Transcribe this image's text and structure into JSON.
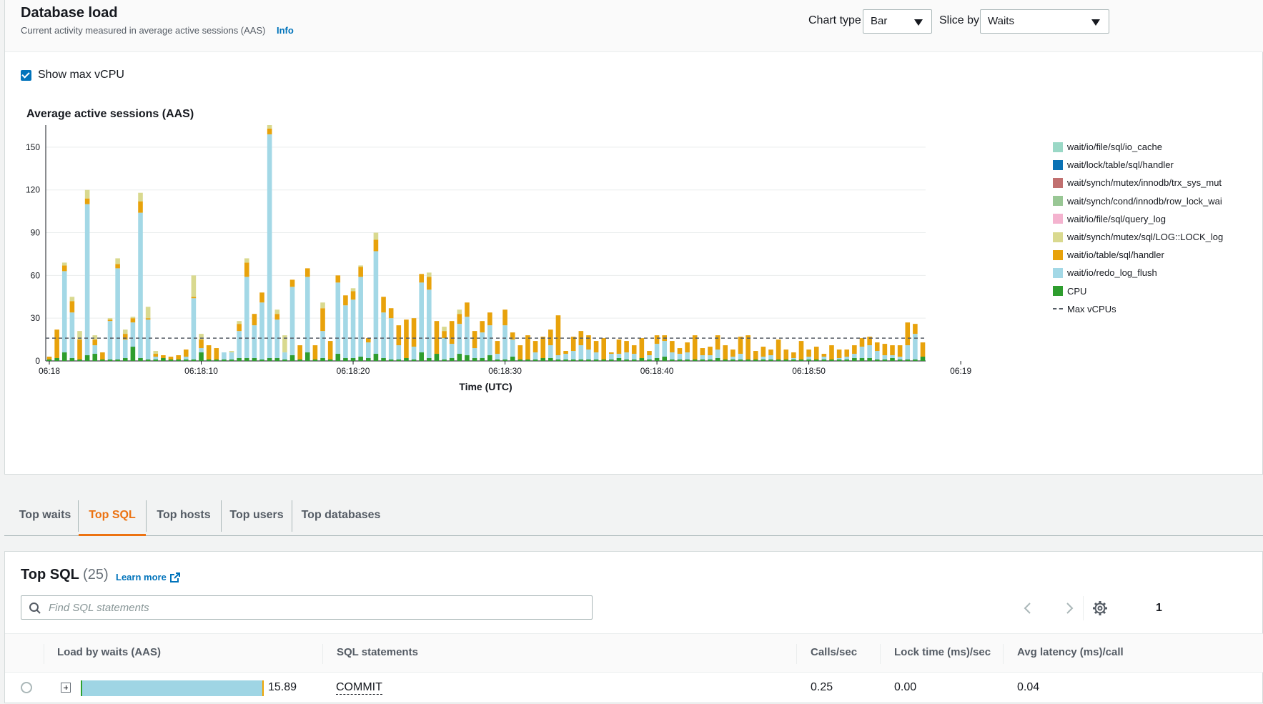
{
  "header": {
    "title": "Database load",
    "subtitle": "Current activity measured in average active sessions (AAS)",
    "info_link": "Info",
    "chart_type_label": "Chart type",
    "chart_type_value": "Bar",
    "slice_by_label": "Slice by",
    "slice_by_value": "Waits"
  },
  "show_max_vcpu": {
    "label": "Show max vCPU",
    "checked": true
  },
  "chart_data": {
    "type": "bar",
    "stacked": true,
    "title": "Average active sessions (AAS)",
    "xlabel": "Time (UTC)",
    "ylabel": "",
    "ylim": [
      0,
      168
    ],
    "yticks": [
      0,
      30,
      60,
      90,
      120,
      150,
      168
    ],
    "xticks": [
      "06:18",
      "06:18:10",
      "06:18:20",
      "06:18:30",
      "06:18:40",
      "06:18:50",
      "06:19",
      "06:19:10",
      "06:19:20",
      "06:19:30",
      "06:19:40",
      "06:19:50"
    ],
    "bars_per_second": 2,
    "grid": true,
    "legend_position": "right",
    "max_vcpus": 16,
    "colors": {
      "io_cache": "#9ad8c6",
      "lock_handler": "#0a72b5",
      "trx_sys_mut": "#c17070",
      "row_lock_wai": "#99c795",
      "query_log": "#f4b3cf",
      "lock_log": "#d9d98f",
      "table_handler": "#e8a20b",
      "redo_log_flush": "#a3d8e6",
      "cpu": "#2e9d2e",
      "max_vcpus": "#545b64"
    },
    "series": [
      {
        "name": "wait/io/file/sql/io_cache",
        "key": "io_cache"
      },
      {
        "name": "wait/lock/table/sql/handler",
        "key": "lock_handler"
      },
      {
        "name": "wait/synch/mutex/innodb/trx_sys_mut",
        "key": "trx_sys_mut"
      },
      {
        "name": "wait/synch/cond/innodb/row_lock_wai",
        "key": "row_lock_wai"
      },
      {
        "name": "wait/io/file/sql/query_log",
        "key": "query_log"
      },
      {
        "name": "wait/synch/mutex/sql/LOG::LOCK_log",
        "key": "lock_log"
      },
      {
        "name": "wait/io/table/sql/handler",
        "key": "table_handler"
      },
      {
        "name": "wait/io/redo_log_flush",
        "key": "redo_log_flush"
      },
      {
        "name": "CPU",
        "key": "cpu"
      }
    ],
    "max_vcpus_label": "Max vCPUs",
    "bars": [
      [
        1,
        0,
        2,
        0
      ],
      [
        2,
        0,
        20,
        0
      ],
      [
        6,
        57,
        4,
        2
      ],
      [
        2,
        32,
        8,
        3
      ],
      [
        1,
        0,
        14,
        6
      ],
      [
        4,
        106,
        4,
        6
      ],
      [
        5,
        6,
        4,
        3
      ],
      [
        1,
        0,
        5,
        0
      ],
      [
        1,
        27,
        1,
        1
      ],
      [
        1,
        64,
        3,
        4
      ],
      [
        2,
        13,
        4,
        3
      ],
      [
        10,
        17,
        3,
        1
      ],
      [
        2,
        102,
        8,
        6
      ],
      [
        1,
        28,
        1,
        8
      ],
      [
        1,
        2,
        2,
        2
      ],
      [
        2,
        0,
        2,
        0
      ],
      [
        1,
        0,
        2,
        0
      ],
      [
        1,
        0,
        3,
        0
      ],
      [
        1,
        2,
        5,
        0
      ],
      [
        1,
        43,
        1,
        15
      ],
      [
        6,
        3,
        6,
        4
      ],
      [
        1,
        0,
        10,
        0
      ],
      [
        1,
        0,
        8,
        0
      ],
      [
        1,
        5,
        0,
        0
      ],
      [
        1,
        5,
        0,
        1
      ],
      [
        2,
        19,
        5,
        2
      ],
      [
        2,
        57,
        10,
        3
      ],
      [
        2,
        23,
        8,
        0
      ],
      [
        1,
        40,
        7,
        0
      ],
      [
        2,
        157,
        4,
        4
      ],
      [
        2,
        27,
        4,
        3
      ],
      [
        1,
        5,
        0,
        12
      ],
      [
        4,
        48,
        5,
        0
      ],
      [
        1,
        0,
        10,
        0
      ],
      [
        6,
        53,
        6,
        0
      ],
      [
        1,
        0,
        10,
        0
      ],
      [
        2,
        19,
        16,
        4
      ],
      [
        1,
        0,
        13,
        0
      ],
      [
        5,
        50,
        5,
        0
      ],
      [
        2,
        37,
        7,
        0
      ],
      [
        2,
        41,
        6,
        2
      ],
      [
        3,
        56,
        7,
        1
      ],
      [
        2,
        11,
        3,
        0
      ],
      [
        5,
        72,
        8,
        5
      ],
      [
        2,
        32,
        11,
        0
      ],
      [
        1,
        29,
        7,
        0
      ],
      [
        1,
        10,
        14,
        0
      ],
      [
        2,
        0,
        27,
        0
      ],
      [
        1,
        9,
        20,
        0
      ],
      [
        6,
        49,
        6,
        0
      ],
      [
        2,
        48,
        9,
        3
      ],
      [
        5,
        0,
        23,
        0
      ],
      [
        1,
        15,
        5,
        3
      ],
      [
        2,
        10,
        16,
        0
      ],
      [
        5,
        21,
        7,
        3
      ],
      [
        4,
        27,
        10,
        0
      ],
      [
        2,
        7,
        12,
        0
      ],
      [
        2,
        18,
        8,
        0
      ],
      [
        4,
        21,
        9,
        0
      ],
      [
        1,
        4,
        9,
        0
      ],
      [
        1,
        24,
        11,
        0
      ],
      [
        3,
        12,
        5,
        0
      ],
      [
        1,
        0,
        10,
        0
      ],
      [
        1,
        0,
        17,
        0
      ],
      [
        1,
        5,
        8,
        0
      ],
      [
        2,
        0,
        15,
        0
      ],
      [
        2,
        9,
        11,
        0
      ],
      [
        1,
        3,
        28,
        0
      ],
      [
        1,
        4,
        2,
        0
      ],
      [
        1,
        6,
        10,
        0
      ],
      [
        1,
        10,
        10,
        0
      ],
      [
        1,
        7,
        10,
        0
      ],
      [
        1,
        5,
        8,
        0
      ],
      [
        1,
        0,
        15,
        0
      ],
      [
        1,
        4,
        1,
        0
      ],
      [
        2,
        3,
        10,
        0
      ],
      [
        1,
        5,
        8,
        0
      ],
      [
        1,
        4,
        6,
        0
      ],
      [
        2,
        0,
        14,
        0
      ],
      [
        1,
        3,
        3,
        0
      ],
      [
        2,
        10,
        6,
        0
      ],
      [
        3,
        11,
        4,
        0
      ],
      [
        1,
        5,
        8,
        0
      ],
      [
        1,
        4,
        4,
        0
      ],
      [
        1,
        5,
        7,
        0
      ],
      [
        1,
        0,
        17,
        0
      ],
      [
        1,
        3,
        5,
        0
      ],
      [
        1,
        3,
        6,
        0
      ],
      [
        2,
        6,
        10,
        0
      ],
      [
        1,
        0,
        10,
        0
      ],
      [
        1,
        2,
        5,
        0
      ],
      [
        1,
        4,
        12,
        0
      ],
      [
        1,
        0,
        17,
        0
      ],
      [
        1,
        0,
        6,
        0
      ],
      [
        1,
        2,
        7,
        0
      ],
      [
        1,
        3,
        4,
        0
      ],
      [
        1,
        0,
        14,
        0
      ],
      [
        1,
        0,
        7,
        0
      ],
      [
        1,
        1,
        4,
        0
      ],
      [
        1,
        0,
        13,
        0
      ],
      [
        1,
        2,
        5,
        0
      ],
      [
        1,
        0,
        9,
        0
      ],
      [
        1,
        2,
        2,
        0
      ],
      [
        1,
        0,
        10,
        0
      ],
      [
        1,
        1,
        6,
        0
      ],
      [
        1,
        2,
        5,
        0
      ],
      [
        2,
        3,
        6,
        0
      ],
      [
        2,
        8,
        6,
        0
      ],
      [
        2,
        9,
        6,
        0
      ],
      [
        1,
        6,
        6,
        0
      ],
      [
        1,
        3,
        8,
        0
      ],
      [
        2,
        2,
        7,
        0
      ],
      [
        1,
        2,
        8,
        0
      ],
      [
        1,
        10,
        16,
        0
      ],
      [
        1,
        18,
        7,
        0
      ],
      [
        3,
        0,
        10,
        0
      ]
    ]
  },
  "tabs": [
    "Top waits",
    "Top SQL",
    "Top hosts",
    "Top users",
    "Top databases"
  ],
  "active_tab": "Top SQL",
  "top_sql": {
    "title": "Top SQL",
    "count": "(25)",
    "learn_more": "Learn more",
    "search_placeholder": "Find SQL statements",
    "page": "1",
    "columns": [
      "Load by waits (AAS)",
      "SQL statements",
      "Calls/sec",
      "Lock time (ms)/sec",
      "Avg latency (ms)/call"
    ],
    "rows": [
      {
        "load": "15.89",
        "sql": "COMMIT",
        "calls": "0.25",
        "lock_time": "0.00",
        "avg_latency": "0.04"
      }
    ]
  }
}
